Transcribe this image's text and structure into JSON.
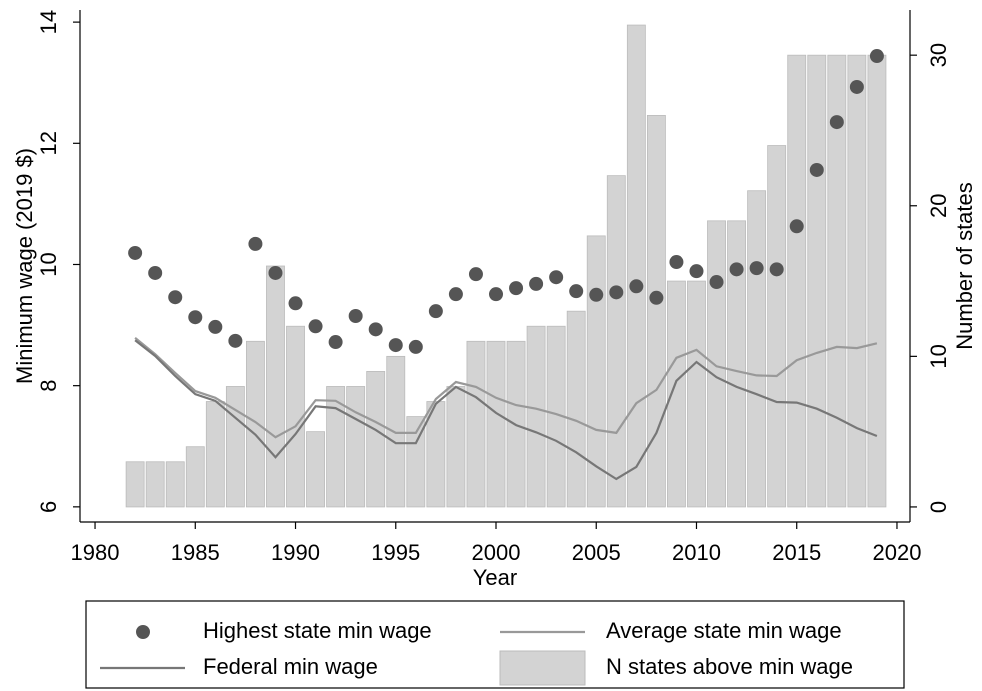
{
  "chart_data": {
    "type": "combo",
    "x_label": "Year",
    "y_label": "Minimum wage (2019 $)",
    "y2_label": "Number of states",
    "x": [
      1982,
      1983,
      1984,
      1985,
      1986,
      1987,
      1988,
      1989,
      1990,
      1991,
      1992,
      1993,
      1994,
      1995,
      1996,
      1997,
      1998,
      1999,
      2000,
      2001,
      2002,
      2003,
      2004,
      2005,
      2006,
      2007,
      2008,
      2009,
      2010,
      2011,
      2012,
      2013,
      2014,
      2015,
      2016,
      2017,
      2018,
      2019
    ],
    "xlim": [
      1979.25,
      2020.65
    ],
    "xticks": [
      1980,
      1985,
      1990,
      1995,
      2000,
      2005,
      2010,
      2015,
      2020
    ],
    "ylim": [
      5.75,
      14.2
    ],
    "yticks": [
      6,
      8,
      10,
      12,
      14
    ],
    "y2lim": [
      -1,
      33
    ],
    "y2ticks": [
      0,
      10,
      20,
      30
    ],
    "series": [
      {
        "name": "Highest state min wage",
        "type": "scatter",
        "color": "#555555",
        "values": [
          10.19,
          9.86,
          9.46,
          9.13,
          8.97,
          8.74,
          10.34,
          9.86,
          9.36,
          8.98,
          8.72,
          9.15,
          8.93,
          8.67,
          8.64,
          9.23,
          9.51,
          9.84,
          9.51,
          9.61,
          9.68,
          9.79,
          9.56,
          9.5,
          9.54,
          9.64,
          9.45,
          10.04,
          9.89,
          9.71,
          9.92,
          9.94,
          9.92,
          10.63,
          11.56,
          12.35,
          12.93,
          13.44
        ]
      },
      {
        "name": "Average state min wage",
        "type": "line",
        "color": "#999999",
        "values": [
          8.79,
          8.52,
          8.21,
          7.91,
          7.8,
          7.6,
          7.4,
          7.15,
          7.33,
          7.76,
          7.75,
          7.56,
          7.4,
          7.22,
          7.22,
          7.78,
          8.06,
          7.98,
          7.8,
          7.68,
          7.62,
          7.53,
          7.42,
          7.27,
          7.22,
          7.71,
          7.93,
          8.46,
          8.59,
          8.32,
          8.24,
          8.17,
          8.16,
          8.42,
          8.54,
          8.64,
          8.62,
          8.7
        ]
      },
      {
        "name": "Federal min wage",
        "type": "line",
        "color": "#777777",
        "values": [
          8.75,
          8.49,
          8.16,
          7.86,
          7.75,
          7.47,
          7.19,
          6.82,
          7.2,
          7.66,
          7.63,
          7.45,
          7.27,
          7.05,
          7.05,
          7.7,
          7.98,
          7.81,
          7.55,
          7.35,
          7.23,
          7.09,
          6.9,
          6.67,
          6.46,
          6.66,
          7.22,
          8.08,
          8.39,
          8.14,
          7.98,
          7.86,
          7.73,
          7.72,
          7.62,
          7.47,
          7.3,
          7.17
        ]
      },
      {
        "name": "N states above min wage",
        "type": "bar",
        "axis": "y2",
        "color": "#d3d3d3",
        "values": [
          3,
          3,
          3,
          4,
          7,
          8,
          11,
          16,
          12,
          5,
          8,
          8,
          9,
          10,
          6,
          7,
          8,
          11,
          11,
          11,
          12,
          12,
          13,
          18,
          22,
          32,
          26,
          15,
          15,
          19,
          19,
          21,
          24,
          30,
          30,
          30,
          30,
          30
        ]
      }
    ]
  }
}
